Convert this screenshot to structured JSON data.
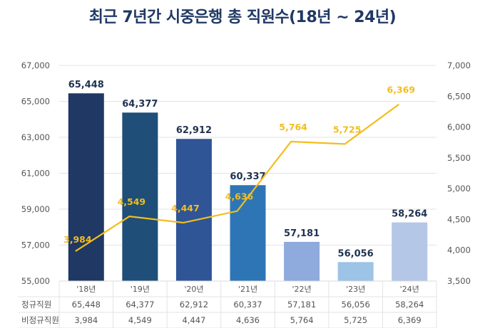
{
  "chart_data": {
    "type": "bar",
    "title": "최근 7년간 시중은행 총 직원수(18년 ~ 24년)",
    "categories": [
      "'18년",
      "'19년",
      "'20년",
      "'21년",
      "'22년",
      "'23년",
      "'24년"
    ],
    "series": [
      {
        "name": "정규직원",
        "type": "bar",
        "axis": "left",
        "values": [
          65448,
          64377,
          62912,
          60337,
          57181,
          56056,
          58264
        ],
        "labels": [
          "65,448",
          "64,377",
          "62,912",
          "60,337",
          "57,181",
          "56,056",
          "58,264"
        ],
        "colors": [
          "#1f3864",
          "#1f4e79",
          "#2f5597",
          "#2e75b6",
          "#8faadc",
          "#9dc3e6",
          "#b4c7e7"
        ]
      },
      {
        "name": "비정규직원",
        "type": "line",
        "axis": "right",
        "values": [
          3984,
          4549,
          4447,
          4636,
          5764,
          5725,
          6369
        ],
        "labels": [
          "3,984",
          "4,549",
          "4,447",
          "4,636",
          "5,764",
          "5,725",
          "6,369"
        ],
        "color": "#f2bd1d"
      }
    ],
    "left_axis": {
      "ylim": [
        55000,
        67000
      ],
      "ticks": [
        55000,
        57000,
        59000,
        61000,
        63000,
        65000,
        67000
      ],
      "tick_labels": [
        "55,000",
        "57,000",
        "59,000",
        "61,000",
        "63,000",
        "65,000",
        "67,000"
      ]
    },
    "right_axis": {
      "ylim": [
        3500,
        7000
      ],
      "ticks": [
        3500,
        4000,
        4500,
        5000,
        5500,
        6000,
        6500,
        7000
      ],
      "tick_labels": [
        "3,500",
        "4,000",
        "4,500",
        "5,000",
        "5,500",
        "6,000",
        "6,500",
        "7,000"
      ]
    },
    "grid": true,
    "data_table": {
      "row_labels": [
        "정규직원",
        "비정규직원"
      ],
      "rows": [
        [
          "65,448",
          "64,377",
          "62,912",
          "60,337",
          "57,181",
          "56,056",
          "58,264"
        ],
        [
          "3,984",
          "4,549",
          "4,447",
          "4,636",
          "5,764",
          "5,725",
          "6,369"
        ]
      ]
    }
  }
}
